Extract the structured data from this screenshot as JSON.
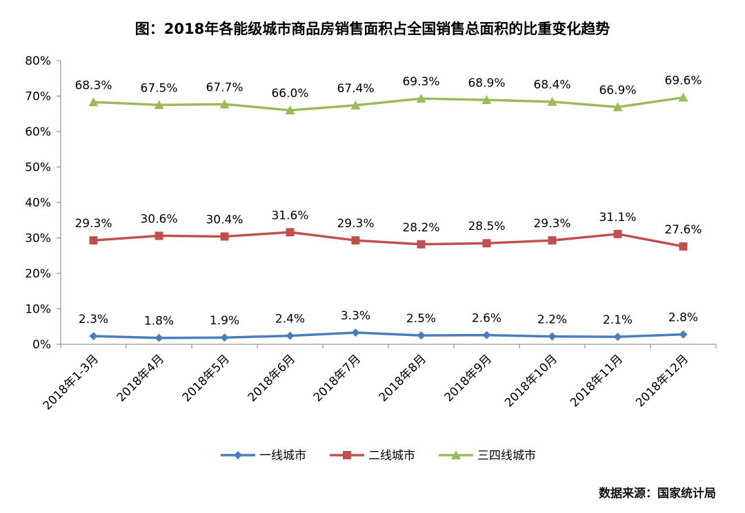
{
  "chart_data": {
    "type": "line",
    "title": "图：2018年各能级城市商品房销售面积占全国销售总面积的比重变化趋势",
    "categories": [
      "2018年1-3月",
      "2018年4月",
      "2018年5月",
      "2018年6月",
      "2018年7月",
      "2018年8月",
      "2018年9月",
      "2018年10月",
      "2018年11月",
      "2018年12月"
    ],
    "yticks": [
      "0%",
      "10%",
      "20%",
      "30%",
      "40%",
      "50%",
      "60%",
      "70%",
      "80%"
    ],
    "ylim": [
      0,
      80
    ],
    "grid": false,
    "legend_position": "bottom",
    "series": [
      {
        "name": "一线城市",
        "color": "#4a7ebb",
        "marker": "diamond",
        "values": [
          2.3,
          1.8,
          1.9,
          2.4,
          3.3,
          2.5,
          2.6,
          2.2,
          2.1,
          2.8
        ],
        "labels": [
          "2.3%",
          "1.8%",
          "1.9%",
          "2.4%",
          "3.3%",
          "2.5%",
          "2.6%",
          "2.2%",
          "2.1%",
          "2.8%"
        ]
      },
      {
        "name": "二线城市",
        "color": "#c0504d",
        "marker": "square",
        "values": [
          29.3,
          30.6,
          30.4,
          31.6,
          29.3,
          28.2,
          28.5,
          29.3,
          31.1,
          27.6
        ],
        "labels": [
          "29.3%",
          "30.6%",
          "30.4%",
          "31.6%",
          "29.3%",
          "28.2%",
          "28.5%",
          "29.3%",
          "31.1%",
          "27.6%"
        ]
      },
      {
        "name": "三四线城市",
        "color": "#9bbb59",
        "marker": "triangle",
        "values": [
          68.3,
          67.5,
          67.7,
          66.0,
          67.4,
          69.3,
          68.9,
          68.4,
          66.9,
          69.6
        ],
        "labels": [
          "68.3%",
          "67.5%",
          "67.7%",
          "66.0%",
          "67.4%",
          "69.3%",
          "68.9%",
          "68.4%",
          "66.9%",
          "69.6%"
        ]
      }
    ]
  },
  "source": "数据来源：国家统计局"
}
